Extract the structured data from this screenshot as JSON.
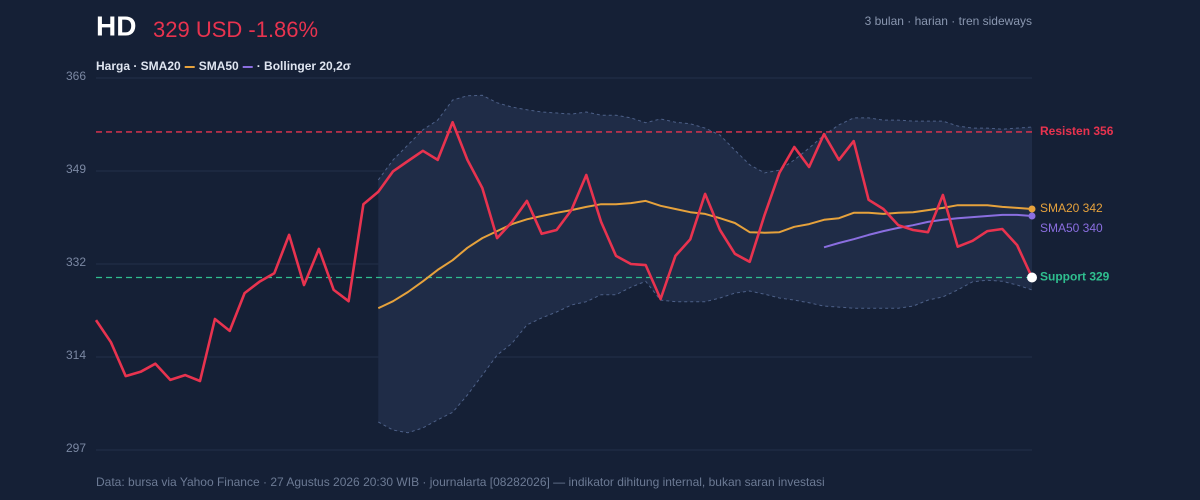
{
  "chart_data": {
    "type": "line",
    "ticker": "HD",
    "price_text": "329 USD -1.86%",
    "subtitle": "3 bulan · harian · tren sideways",
    "legend_text": [
      "Harga · SMA20",
      "SMA50",
      "· Bollinger 20,2σ"
    ],
    "source": "Data: bursa via Yahoo Finance · 27 Agustus 2026 20:30 WIB · journalarta [08282026] — indikator dihitung internal, bukan saran investasi",
    "ylim": [
      297,
      366
    ],
    "yticks": [
      297,
      {
        "value": 314.25,
        "label": "314"
      },
      {
        "value": 331.5,
        "label": "332"
      },
      {
        "value": 348.75,
        "label": "349"
      },
      366
    ],
    "grid": true,
    "series": [
      {
        "color": "#e8334f",
        "values": [
          321.1,
          317.0,
          310.7,
          311.5,
          313.0,
          310.0,
          310.9,
          309.8,
          321.3,
          319.1,
          326.1,
          328.2,
          329.8,
          336.9,
          327.6,
          334.3,
          326.7,
          324.6,
          342.6,
          344.9,
          348.7,
          350.6,
          352.5,
          350.8,
          357.8,
          350.8,
          345.6,
          336.3,
          339.3,
          343.2,
          337.1,
          337.8,
          341.5,
          348.0,
          339.3,
          333.0,
          331.5,
          331.3,
          325.0,
          333.0,
          336.1,
          344.5,
          337.8,
          333.4,
          331.9,
          340.6,
          348.4,
          353.2,
          349.5,
          355.6,
          350.8,
          354.3,
          343.4,
          341.7,
          338.7,
          337.8,
          337.4,
          344.3,
          334.7,
          335.8,
          337.6,
          338.0,
          335.0,
          329
        ]
      },
      {
        "color": "#e6a23c",
        "end_label": "SMA20 342",
        "values": [
          null,
          null,
          null,
          null,
          null,
          null,
          null,
          null,
          null,
          null,
          null,
          null,
          null,
          null,
          null,
          null,
          null,
          null,
          null,
          323.3,
          324.6,
          326.3,
          328.3,
          330.4,
          332.2,
          334.5,
          336.3,
          337.6,
          338.9,
          339.8,
          340.4,
          341.0,
          341.5,
          342.1,
          342.6,
          342.6,
          342.8,
          343.2,
          342.3,
          341.7,
          341.1,
          340.8,
          340.0,
          339.1,
          337.4,
          337.3,
          337.4,
          338.4,
          338.9,
          339.7,
          340.0,
          341.0,
          341.0,
          340.8,
          341.0,
          341.1,
          341.5,
          341.9,
          342.4,
          342.4,
          342.4,
          342.1,
          341.9,
          341.7
        ]
      },
      {
        "color": "#8a6ee0",
        "end_label": "SMA50 340",
        "values": [
          null,
          null,
          null,
          null,
          null,
          null,
          null,
          null,
          null,
          null,
          null,
          null,
          null,
          null,
          null,
          null,
          null,
          null,
          null,
          null,
          null,
          null,
          null,
          null,
          null,
          null,
          null,
          null,
          null,
          null,
          null,
          null,
          null,
          null,
          null,
          null,
          null,
          null,
          null,
          null,
          null,
          null,
          null,
          null,
          null,
          null,
          null,
          null,
          null,
          334.6,
          335.4,
          336.1,
          336.9,
          337.6,
          338.2,
          338.7,
          339.3,
          339.7,
          340.0,
          340.2,
          340.4,
          340.6,
          340.6,
          340.4
        ]
      }
    ],
    "bollinger": {
      "upper": [
        null,
        null,
        null,
        null,
        null,
        null,
        null,
        null,
        null,
        null,
        null,
        null,
        null,
        null,
        null,
        null,
        null,
        null,
        null,
        347.1,
        350.8,
        353.6,
        356.4,
        358.2,
        361.9,
        362.7,
        362.8,
        361.4,
        360.6,
        360.1,
        359.7,
        359.5,
        359.3,
        359.7,
        359.1,
        359.1,
        358.6,
        357.7,
        358.4,
        357.8,
        357.5,
        356.7,
        355.4,
        352.6,
        349.9,
        348.4,
        348.9,
        350.8,
        353.0,
        355.4,
        357.3,
        358.6,
        358.6,
        358.2,
        358.2,
        358.0,
        358.0,
        358.0,
        357.1,
        356.7,
        356.7,
        356.5,
        356.7,
        356.9
      ],
      "lower": [
        null,
        null,
        null,
        null,
        null,
        null,
        null,
        null,
        null,
        null,
        null,
        null,
        null,
        null,
        null,
        null,
        null,
        null,
        null,
        302.2,
        300.7,
        300.2,
        301.1,
        302.6,
        304.0,
        307.2,
        310.9,
        314.6,
        316.8,
        320.2,
        321.5,
        322.6,
        323.9,
        324.5,
        325.8,
        325.8,
        327.2,
        328.3,
        324.8,
        324.5,
        324.5,
        324.5,
        325.2,
        326.1,
        326.5,
        325.9,
        325.2,
        324.8,
        324.3,
        323.7,
        323.5,
        323.3,
        323.3,
        323.3,
        323.3,
        323.7,
        324.8,
        325.4,
        326.7,
        328.2,
        328.5,
        328.3,
        327.6,
        326.7
      ]
    },
    "levels": [
      {
        "label": "Resisten 356",
        "value": 356,
        "color": "#e8334f"
      },
      {
        "label": "Support 329",
        "value": 329,
        "color": "#2fbf8f"
      }
    ]
  }
}
